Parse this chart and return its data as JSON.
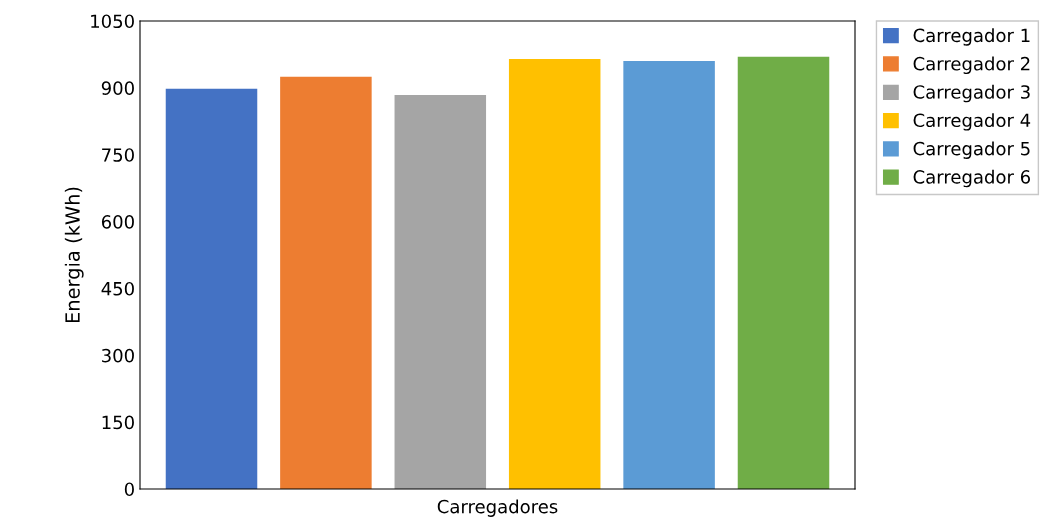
{
  "chart_data": {
    "type": "bar",
    "xlabel": "Carregadores",
    "ylabel": "Energia (kWh)",
    "categories": [
      null
    ],
    "series": [
      {
        "name": "Carregador 1",
        "color": "#4472c4",
        "values": [
          898
        ]
      },
      {
        "name": "Carregador 2",
        "color": "#ed7d31",
        "values": [
          925
        ]
      },
      {
        "name": "Carregador 3",
        "color": "#a5a5a5",
        "values": [
          884
        ]
      },
      {
        "name": "Carregador 4",
        "color": "#ffc000",
        "values": [
          965
        ]
      },
      {
        "name": "Carregador 5",
        "color": "#5b9bd5",
        "values": [
          960
        ]
      },
      {
        "name": "Carregador 6",
        "color": "#70ad47",
        "values": [
          970
        ]
      }
    ],
    "ylim": [
      0,
      1050
    ],
    "yticks": [
      0,
      150,
      300,
      450,
      600,
      750,
      900,
      1050
    ],
    "grid": false,
    "legend": "top right"
  }
}
